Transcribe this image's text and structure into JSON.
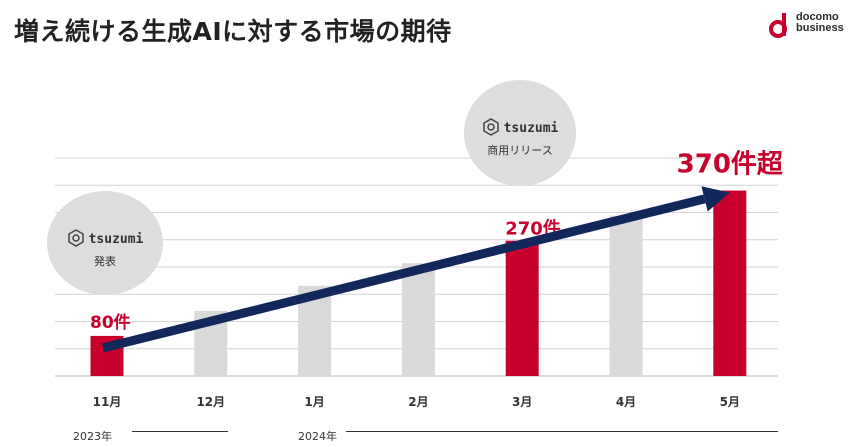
{
  "header": {
    "title": "増え続ける生成AIに対する市場の期待",
    "logo_line1": "docomo",
    "logo_line2": "business"
  },
  "badges": [
    {
      "brand": "tsuzumi",
      "label": "発表"
    },
    {
      "brand": "tsuzumi",
      "label": "商用リリース"
    }
  ],
  "years": [
    "2023年",
    "2024年"
  ],
  "chart_data": {
    "type": "bar",
    "title": "",
    "xlabel": "",
    "ylabel": "",
    "categories": [
      "11月",
      "12月",
      "1月",
      "2月",
      "3月",
      "4月",
      "5月"
    ],
    "values": [
      80,
      130,
      180,
      225,
      270,
      320,
      370
    ],
    "ylim": [
      0,
      435
    ],
    "grid": true,
    "highlighted": [
      true,
      false,
      false,
      false,
      true,
      false,
      true
    ],
    "data_labels": [
      "80件",
      "",
      "",
      "",
      "270件",
      "",
      "370件超"
    ],
    "annotation_arrow": {
      "from": "11月",
      "to": "5月",
      "direction": "upward trend"
    },
    "colors": {
      "highlight": "#c8002d",
      "normal": "#d9d9d9",
      "arrow": "#12285a",
      "grid": "#d4d4d4"
    }
  }
}
